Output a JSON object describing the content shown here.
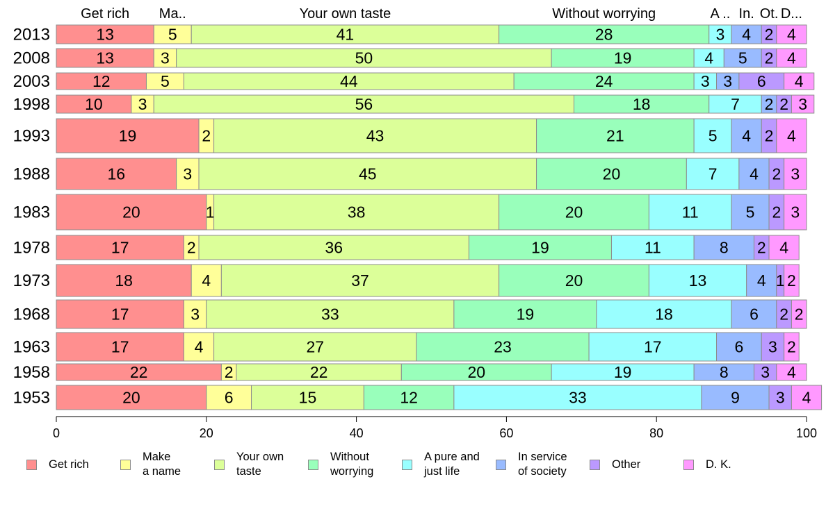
{
  "chart_data": {
    "type": "bar",
    "orientation": "horizontal",
    "stacked": true,
    "title": "",
    "xlabel": "",
    "ylabel": "",
    "xlim": [
      0,
      100
    ],
    "x_ticks": [
      0,
      20,
      40,
      60,
      80,
      100
    ],
    "grid": false,
    "legend_position": "bottom",
    "categories": [
      "2013",
      "2008",
      "2003",
      "1998",
      "1993",
      "1988",
      "1983",
      "1978",
      "1973",
      "1968",
      "1963",
      "1958",
      "1953"
    ],
    "top_labels": [
      {
        "series": "Get rich",
        "text": "Get rich"
      },
      {
        "series": "Make a name",
        "text": "Ma.."
      },
      {
        "series": "Your own taste",
        "text": "Your own taste"
      },
      {
        "series": "Without worrying",
        "text": "Without worrying"
      },
      {
        "series": "A pure and just life",
        "text": "A .."
      },
      {
        "series": "In service of society",
        "text": "In."
      },
      {
        "series": "Other",
        "text": "Ot."
      },
      {
        "series": "D. K.",
        "text": "D..."
      }
    ],
    "series": [
      {
        "name": "Get rich",
        "legend_label": "Get rich",
        "color": "#ff8f8f",
        "values": [
          13,
          13,
          12,
          10,
          19,
          16,
          20,
          17,
          18,
          17,
          17,
          22,
          20
        ]
      },
      {
        "name": "Make a name",
        "legend_label": "Make\na name",
        "color": "#ffff99",
        "values": [
          5,
          3,
          5,
          3,
          2,
          3,
          1,
          2,
          4,
          3,
          4,
          2,
          6
        ]
      },
      {
        "name": "Your own taste",
        "legend_label": "Your own\ntaste",
        "color": "#dcff99",
        "values": [
          41,
          50,
          44,
          56,
          43,
          45,
          38,
          36,
          37,
          33,
          27,
          22,
          15
        ]
      },
      {
        "name": "Without worrying",
        "legend_label": "Without\nworrying",
        "color": "#99ffbb",
        "values": [
          28,
          19,
          24,
          18,
          21,
          20,
          20,
          19,
          20,
          19,
          23,
          20,
          12
        ]
      },
      {
        "name": "A pure and just life",
        "legend_label": "A pure and\njust life",
        "color": "#99ffff",
        "values": [
          3,
          4,
          3,
          7,
          5,
          7,
          11,
          11,
          13,
          18,
          17,
          19,
          33
        ]
      },
      {
        "name": "In service of society",
        "legend_label": "In service\nof society",
        "color": "#99bbff",
        "values": [
          4,
          5,
          3,
          2,
          4,
          4,
          5,
          8,
          4,
          6,
          6,
          8,
          9
        ]
      },
      {
        "name": "Other",
        "legend_label": "Other",
        "color": "#bb99ff",
        "values": [
          2,
          2,
          6,
          2,
          2,
          2,
          2,
          2,
          1,
          2,
          3,
          3,
          3
        ]
      },
      {
        "name": "D. K.",
        "legend_label": "D. K.",
        "color": "#ff99ff",
        "values": [
          4,
          4,
          4,
          3,
          4,
          3,
          3,
          4,
          2,
          2,
          2,
          4,
          4
        ]
      }
    ]
  }
}
